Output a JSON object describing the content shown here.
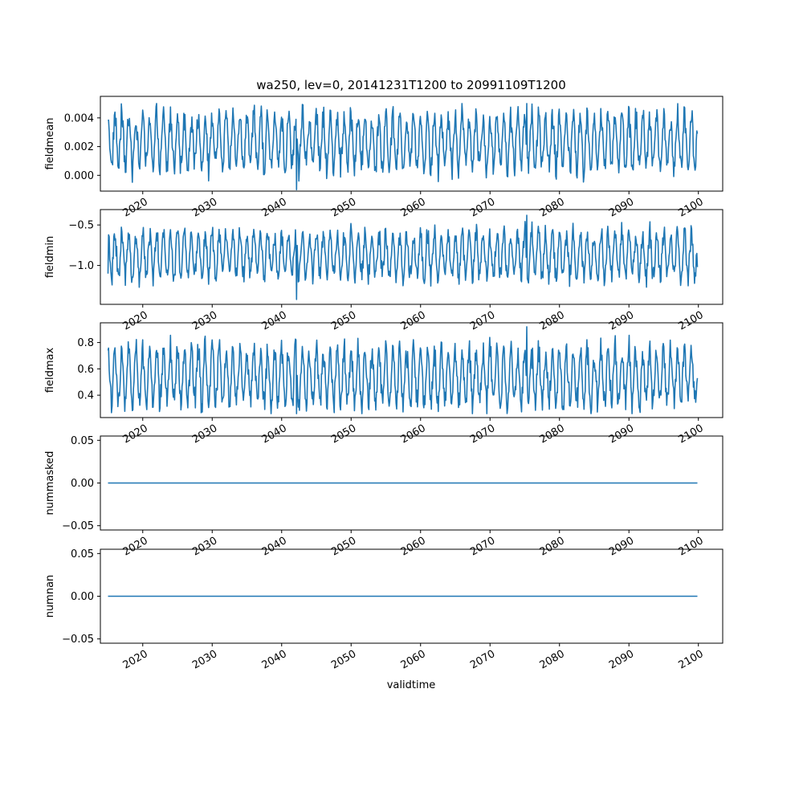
{
  "title": "wa250, lev=0, 20141231T1200 to 20991109T1200",
  "xlabel": "validtime",
  "colors": {
    "line": "#1f77b4",
    "axes": "#000000",
    "background": "#ffffff"
  },
  "chart_data": [
    {
      "type": "line",
      "ylabel": "fieldmean",
      "xlim": [
        2013.9,
        2103.5
      ],
      "ylim": [
        -0.0011,
        0.0055
      ],
      "yticks": [
        0.0,
        0.002,
        0.004
      ],
      "ytick_labels": [
        "0.000",
        "0.002",
        "0.004"
      ],
      "xticks": [
        2020,
        2030,
        2040,
        2050,
        2060,
        2070,
        2080,
        2090,
        2100
      ],
      "xtick_labels": [
        "2020",
        "2030",
        "2040",
        "2050",
        "2060",
        "2070",
        "2080",
        "2090",
        "2100"
      ],
      "series_stats": {
        "start": 2015.0,
        "end": 2099.86,
        "min": -0.001,
        "max": 0.005,
        "typical_low": 0.0005,
        "typical_high": 0.0042,
        "first_value": 0.0038,
        "last_value": 0.0029
      }
    },
    {
      "type": "line",
      "ylabel": "fieldmin",
      "xlim": [
        2013.9,
        2103.5
      ],
      "ylim": [
        -1.48,
        -0.31
      ],
      "yticks": [
        -1.0,
        -0.5
      ],
      "ytick_labels": [
        "−1.0",
        "−0.5"
      ],
      "xticks": [
        2020,
        2030,
        2040,
        2050,
        2060,
        2070,
        2080,
        2090,
        2100
      ],
      "xtick_labels": [
        "2020",
        "2030",
        "2040",
        "2050",
        "2060",
        "2070",
        "2080",
        "2090",
        "2100"
      ],
      "series_stats": {
        "start": 2015.0,
        "end": 2099.86,
        "min": -1.42,
        "max": -0.38,
        "typical_low": -1.15,
        "typical_high": -0.6,
        "first_value": -1.1,
        "last_value": -1.02
      }
    },
    {
      "type": "line",
      "ylabel": "fieldmax",
      "xlim": [
        2013.9,
        2103.5
      ],
      "ylim": [
        0.23,
        0.95
      ],
      "yticks": [
        0.4,
        0.6,
        0.8
      ],
      "ytick_labels": [
        "0.4",
        "0.6",
        "0.8"
      ],
      "xticks": [
        2020,
        2030,
        2040,
        2050,
        2060,
        2070,
        2080,
        2090,
        2100
      ],
      "xtick_labels": [
        "2020",
        "2030",
        "2040",
        "2050",
        "2060",
        "2070",
        "2080",
        "2090",
        "2100"
      ],
      "series_stats": {
        "start": 2015.0,
        "end": 2099.86,
        "min": 0.26,
        "max": 0.92,
        "typical_low": 0.33,
        "typical_high": 0.75,
        "first_value": 0.74,
        "last_value": 0.53
      }
    },
    {
      "type": "line",
      "ylabel": "nummasked",
      "xlim": [
        2013.9,
        2103.5
      ],
      "ylim": [
        -0.055,
        0.055
      ],
      "yticks": [
        -0.05,
        0.0,
        0.05
      ],
      "ytick_labels": [
        "−0.05",
        "0.00",
        "0.05"
      ],
      "xticks": [
        2020,
        2030,
        2040,
        2050,
        2060,
        2070,
        2080,
        2090,
        2100
      ],
      "xtick_labels": [
        "2020",
        "2030",
        "2040",
        "2050",
        "2060",
        "2070",
        "2080",
        "2090",
        "2100"
      ],
      "x": [
        2015.0,
        2099.86
      ],
      "y": [
        0.0,
        0.0
      ]
    },
    {
      "type": "line",
      "ylabel": "numnan",
      "xlim": [
        2013.9,
        2103.5
      ],
      "ylim": [
        -0.055,
        0.055
      ],
      "yticks": [
        -0.05,
        0.0,
        0.05
      ],
      "ytick_labels": [
        "−0.05",
        "0.00",
        "0.05"
      ],
      "xticks": [
        2020,
        2030,
        2040,
        2050,
        2060,
        2070,
        2080,
        2090,
        2100
      ],
      "xtick_labels": [
        "2020",
        "2030",
        "2040",
        "2050",
        "2060",
        "2070",
        "2080",
        "2090",
        "2100"
      ],
      "x": [
        2015.0,
        2099.86
      ],
      "y": [
        0.0,
        0.0
      ]
    }
  ]
}
